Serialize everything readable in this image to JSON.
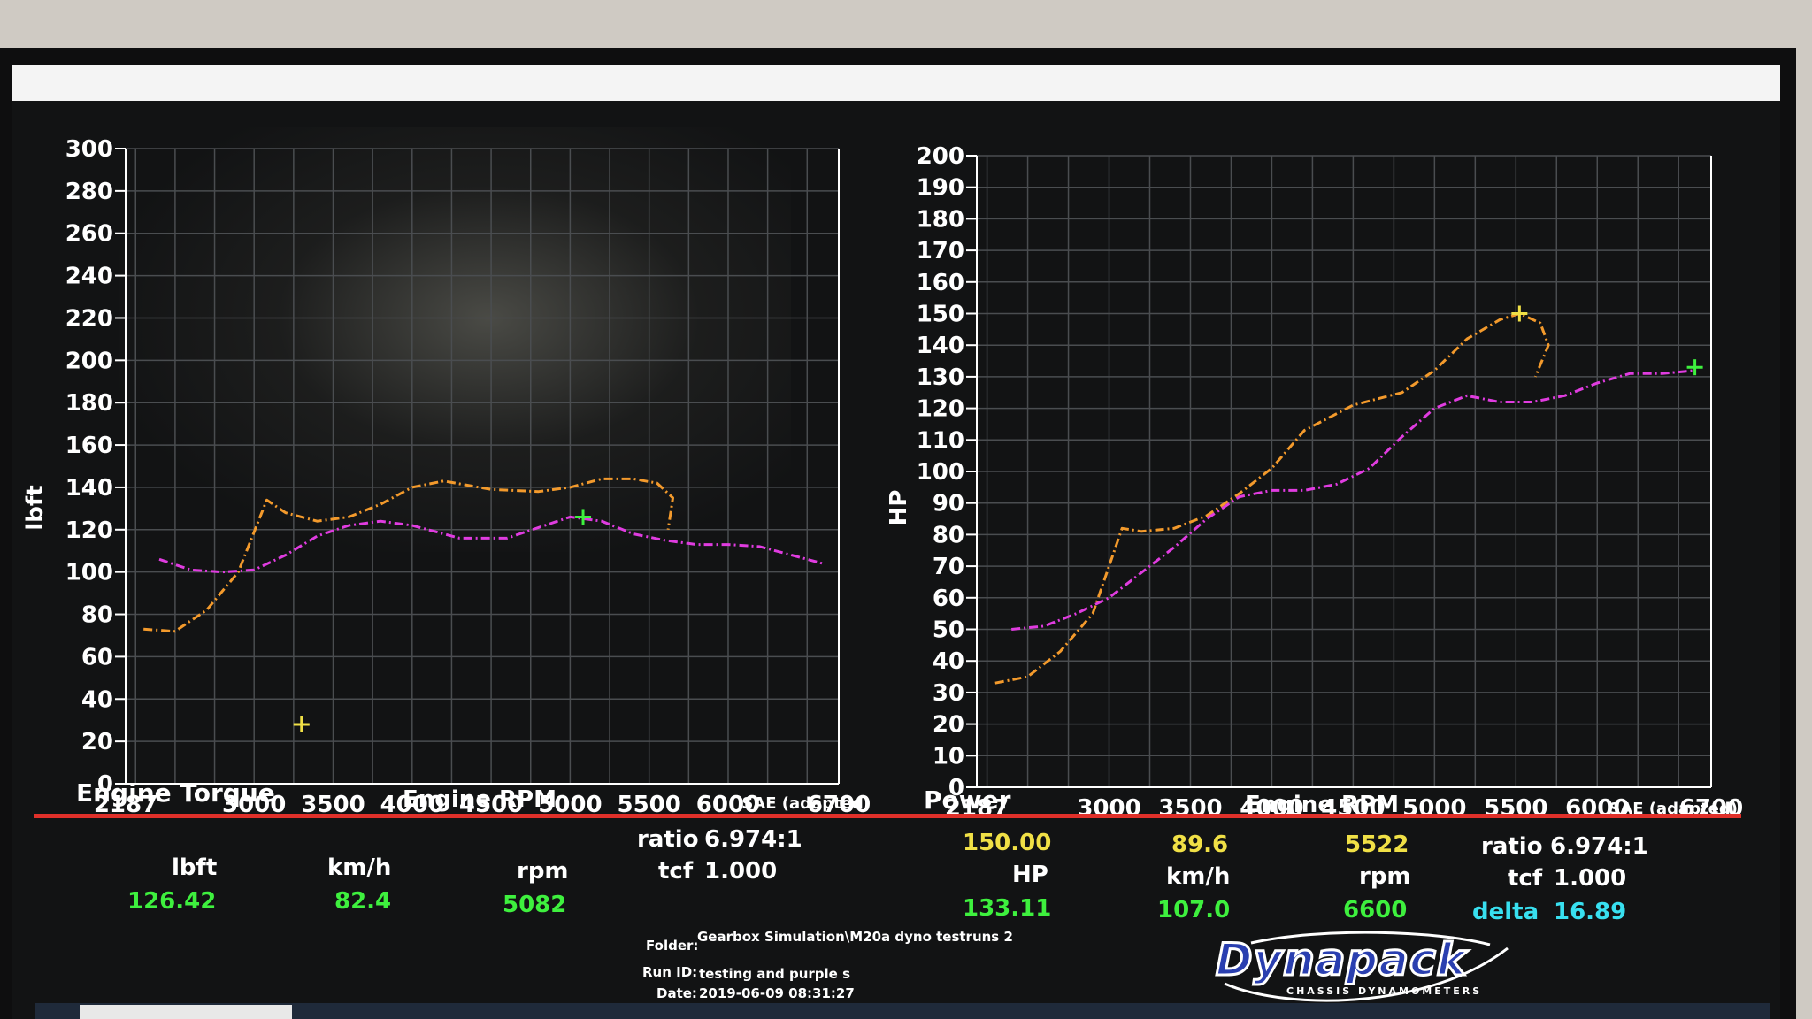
{
  "torque_chart": {
    "title": "Engine Torque",
    "ylabel": "lbft",
    "xlabel": "Engine RPM",
    "note": "SAE (adapted)",
    "y_ticks": [
      "0",
      "20",
      "40",
      "60",
      "80",
      "100",
      "120",
      "140",
      "160",
      "180",
      "200",
      "220",
      "240",
      "260",
      "280",
      "300"
    ],
    "x_ticks": [
      "2187",
      "3000",
      "3500",
      "4000",
      "4500",
      "5000",
      "5500",
      "6000",
      "6700"
    ]
  },
  "power_chart": {
    "title": "Power",
    "ylabel": "HP",
    "xlabel": "Engine RPM",
    "note": "SAE (adapted)",
    "y_ticks": [
      "0",
      "10",
      "20",
      "30",
      "40",
      "50",
      "60",
      "70",
      "80",
      "90",
      "100",
      "110",
      "120",
      "130",
      "140",
      "150",
      "160",
      "170",
      "180",
      "190",
      "200"
    ],
    "x_ticks": [
      "2187",
      "3000",
      "3500",
      "4000",
      "4500",
      "5000",
      "5500",
      "6000",
      "6700"
    ]
  },
  "chart_data": [
    {
      "type": "line",
      "title": "Engine Torque",
      "xlabel": "Engine RPM",
      "ylabel": "lbft",
      "xlim": [
        2187,
        6700
      ],
      "ylim": [
        0,
        300
      ],
      "grid": true,
      "series": [
        {
          "color": "#f39a2c",
          "x": [
            2300,
            2500,
            2700,
            2900,
            3080,
            3200,
            3400,
            3600,
            3800,
            4000,
            4200,
            4500,
            4800,
            5000,
            5200,
            5400,
            5550,
            5650,
            5620
          ],
          "y": [
            73,
            72,
            82,
            100,
            134,
            128,
            124,
            126,
            132,
            140,
            143,
            139,
            138,
            140,
            144,
            144,
            142,
            135,
            120
          ]
        },
        {
          "color": "#e03ce0",
          "x": [
            2400,
            2600,
            2800,
            3000,
            3200,
            3400,
            3600,
            3800,
            4000,
            4300,
            4600,
            4800,
            5000,
            5200,
            5400,
            5600,
            5800,
            6000,
            6200,
            6400,
            6600
          ],
          "y": [
            106,
            101,
            100,
            101,
            108,
            117,
            122,
            124,
            122,
            116,
            116,
            121,
            126,
            124,
            118,
            115,
            113,
            113,
            112,
            108,
            104
          ]
        }
      ],
      "markers": [
        {
          "x": 5082,
          "y": 126,
          "color": "#3ef03e"
        },
        {
          "x": 3300,
          "y": 28,
          "color": "#f0e046"
        }
      ]
    },
    {
      "type": "line",
      "title": "Power",
      "xlabel": "Engine RPM",
      "ylabel": "HP",
      "xlim": [
        2187,
        6700
      ],
      "ylim": [
        0,
        200
      ],
      "grid": true,
      "series": [
        {
          "color": "#f39a2c",
          "x": [
            2300,
            2500,
            2700,
            2900,
            3080,
            3200,
            3400,
            3600,
            3800,
            4000,
            4200,
            4500,
            4800,
            5000,
            5200,
            5400,
            5522,
            5650,
            5700,
            5620
          ],
          "y": [
            33,
            35,
            43,
            55,
            82,
            81,
            82,
            86,
            93,
            101,
            113,
            121,
            125,
            132,
            142,
            148,
            150,
            147,
            140,
            130
          ]
        },
        {
          "color": "#e03ce0",
          "x": [
            2400,
            2600,
            2800,
            3000,
            3200,
            3400,
            3600,
            3800,
            4000,
            4200,
            4400,
            4600,
            4800,
            5000,
            5200,
            5400,
            5600,
            5800,
            6000,
            6200,
            6400,
            6600
          ],
          "y": [
            50,
            51,
            55,
            60,
            68,
            76,
            85,
            92,
            94,
            94,
            96,
            101,
            111,
            120,
            124,
            122,
            122,
            124,
            128,
            131,
            131,
            132
          ]
        }
      ],
      "markers": [
        {
          "x": 5522,
          "y": 150,
          "color": "#f0e046"
        },
        {
          "x": 6600,
          "y": 133,
          "color": "#3ef03e"
        }
      ]
    }
  ],
  "left_readout": {
    "labels": [
      "lbft",
      "km/h",
      "rpm"
    ],
    "values": [
      "126.42",
      "82.4",
      "5082"
    ],
    "ratio_label": "ratio",
    "ratio_value": "6.974:1",
    "tcf_label": "tcf",
    "tcf_value": "1.000"
  },
  "right_readout": {
    "yellow_values": [
      "150.00",
      "89.6",
      "5522"
    ],
    "labels": [
      "HP",
      "km/h",
      "rpm"
    ],
    "values": [
      "133.11",
      "107.0",
      "6600"
    ],
    "ratio_label": "ratio",
    "ratio_value": "6.974:1",
    "tcf_label": "tcf",
    "tcf_value": "1.000",
    "delta_label": "delta",
    "delta_value": "16.89"
  },
  "run_info": {
    "folder_label": "Folder:",
    "folder_value": "Gearbox Simulation\\M20a dyno testruns 2",
    "runid_label": "Run ID:",
    "runid_value": "testing and purple s",
    "date_label": "Date:",
    "date_value": "2019-06-09 08:31:27"
  },
  "logo": {
    "word": "Dynapack",
    "sub": "CHASSIS DYNAMOMETERS"
  },
  "colors": {
    "orange_series": "#f39a2c",
    "magenta_series": "#e03ce0",
    "green": "#3ef03e",
    "yellow": "#f0e046",
    "cyan": "#38e0f0",
    "red_line": "#e0302a"
  }
}
